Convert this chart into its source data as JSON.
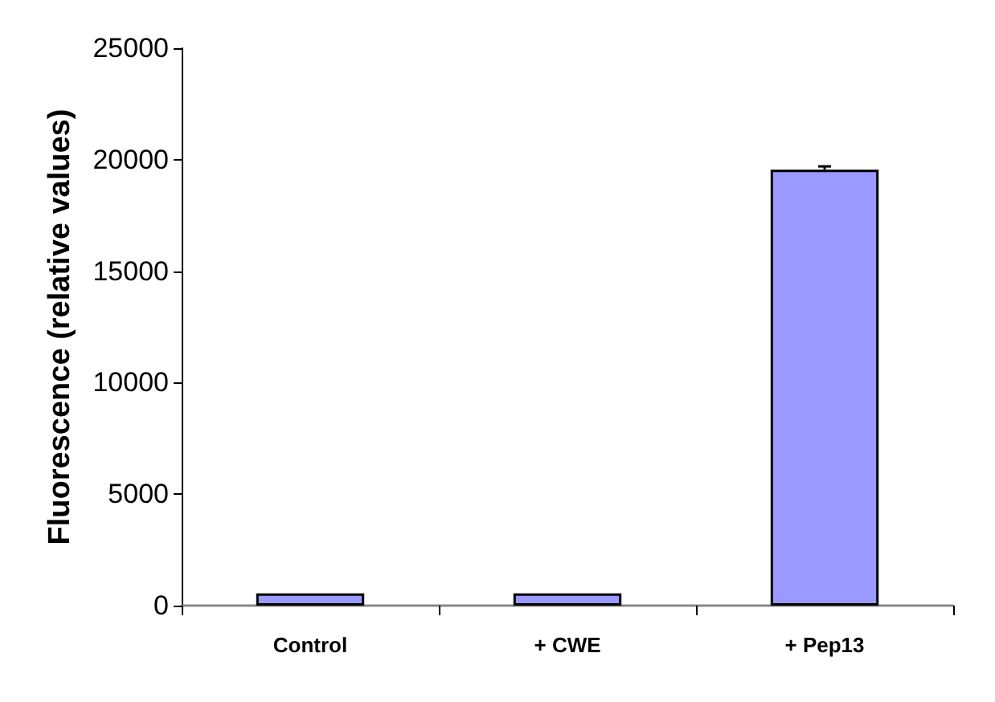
{
  "chart_data": {
    "type": "bar",
    "ylabel": "Fluorescence (relative values)",
    "categories": [
      "Control",
      "+ CWE",
      "+ Pep13"
    ],
    "values": [
      550,
      550,
      19550
    ],
    "errors": [
      null,
      null,
      150
    ],
    "color": "#9999ff",
    "ylim": [
      0,
      25000
    ],
    "yticks": [
      0,
      5000,
      10000,
      15000,
      20000,
      25000
    ],
    "grid": false
  }
}
